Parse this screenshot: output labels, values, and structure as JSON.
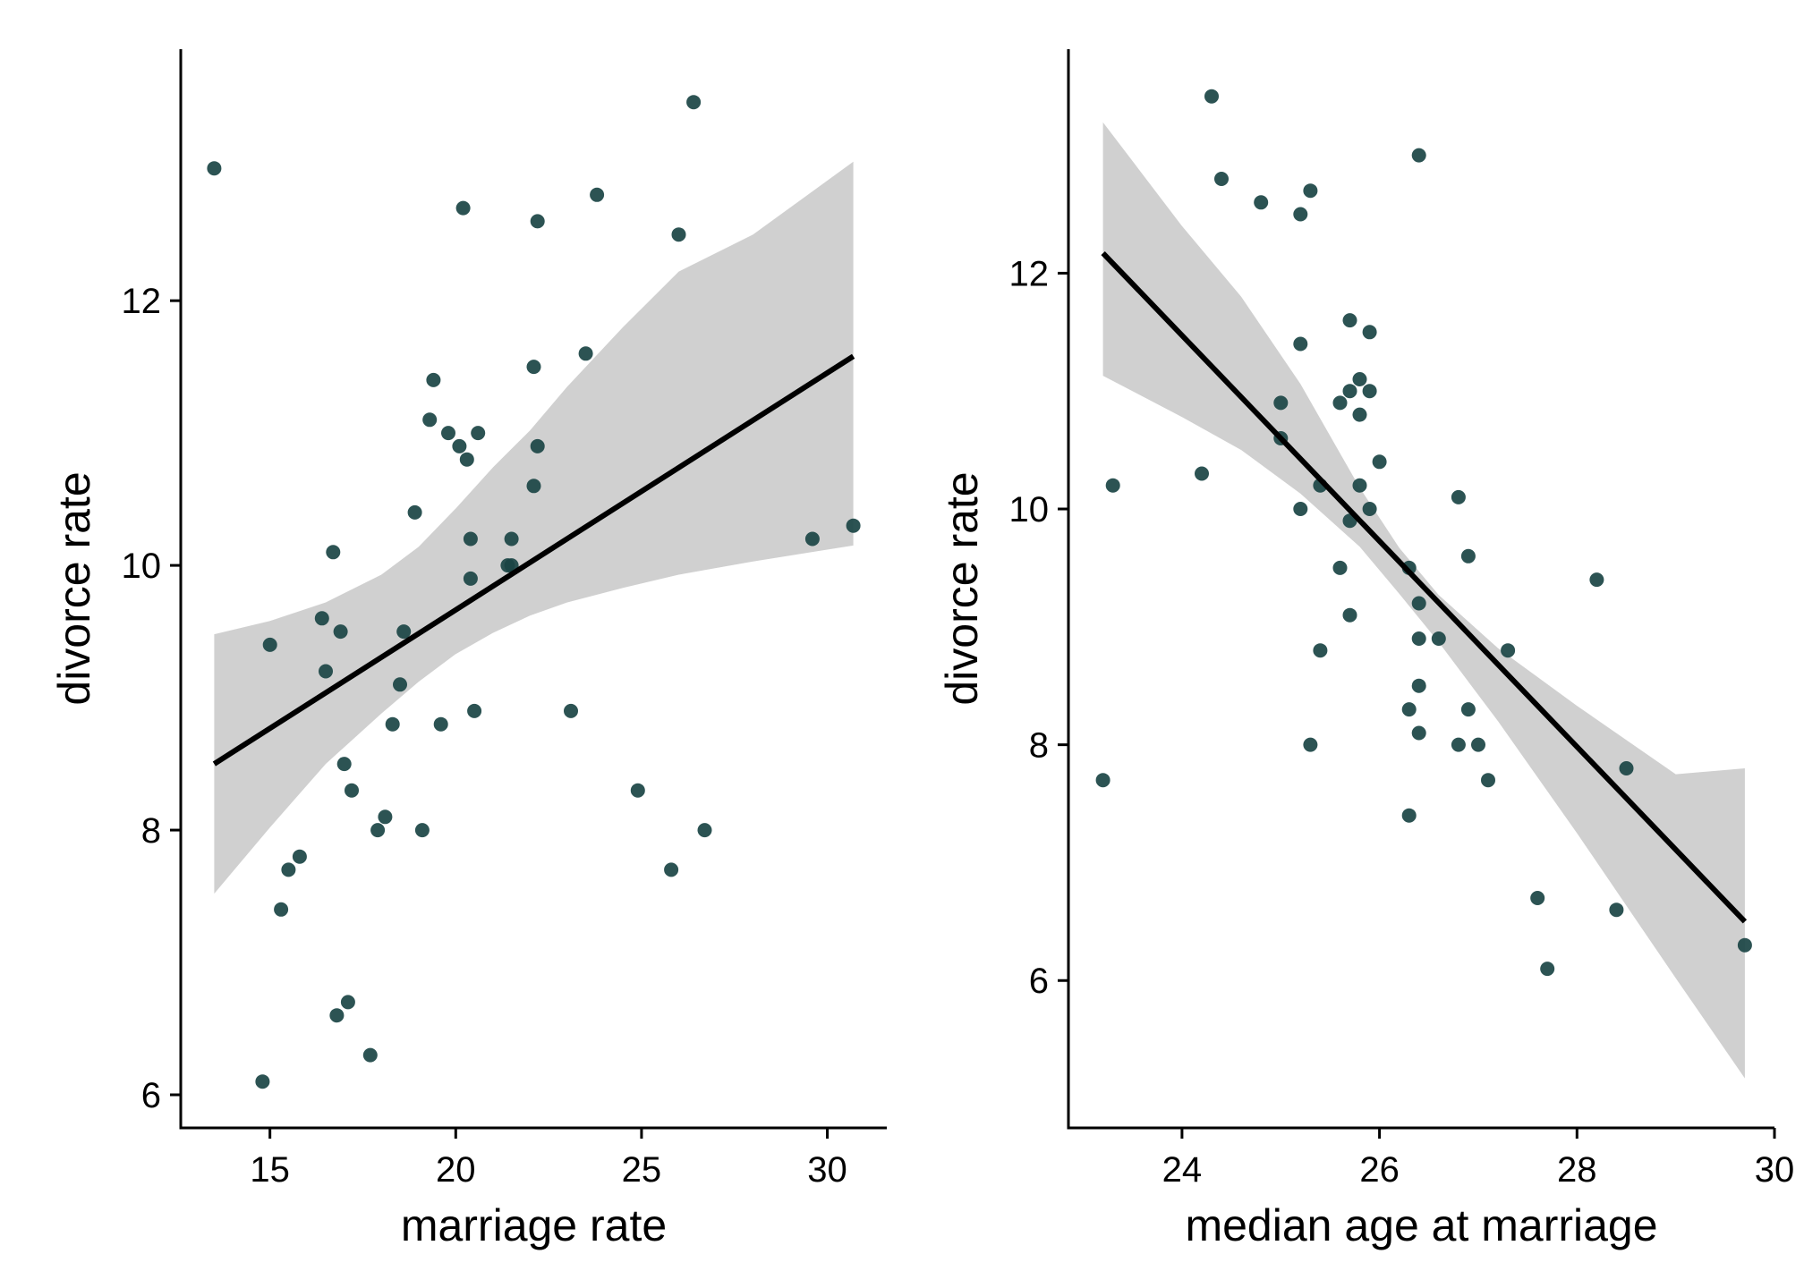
{
  "chart_data": [
    {
      "type": "scatter",
      "title": "",
      "xlabel": "marriage rate",
      "ylabel": "divorce rate",
      "xlim": [
        12.6,
        31.6
      ],
      "ylim": [
        5.75,
        13.9
      ],
      "xticks": [
        15,
        20,
        25,
        30
      ],
      "yticks": [
        6,
        8,
        10,
        12
      ],
      "grid": false,
      "legend": "none",
      "point_color": "#1a4444",
      "ribbon_color": "#d0d0d0",
      "line_color": "#000000",
      "points": [
        [
          13.5,
          13.0
        ],
        [
          14.8,
          6.1
        ],
        [
          15.0,
          9.4
        ],
        [
          15.3,
          7.4
        ],
        [
          15.5,
          7.7
        ],
        [
          15.8,
          7.8
        ],
        [
          16.4,
          9.6
        ],
        [
          16.5,
          9.2
        ],
        [
          16.7,
          10.1
        ],
        [
          16.8,
          6.6
        ],
        [
          16.9,
          9.5
        ],
        [
          17.0,
          8.5
        ],
        [
          17.1,
          6.7
        ],
        [
          17.2,
          8.3
        ],
        [
          17.7,
          6.3
        ],
        [
          17.9,
          8.0
        ],
        [
          18.1,
          8.1
        ],
        [
          18.3,
          8.8
        ],
        [
          18.5,
          9.1
        ],
        [
          18.6,
          9.5
        ],
        [
          18.9,
          10.4
        ],
        [
          19.1,
          8.0
        ],
        [
          19.3,
          11.1
        ],
        [
          19.4,
          11.4
        ],
        [
          19.6,
          8.8
        ],
        [
          19.8,
          11.0
        ],
        [
          20.1,
          10.9
        ],
        [
          20.2,
          12.7
        ],
        [
          20.3,
          10.8
        ],
        [
          20.4,
          9.9
        ],
        [
          20.4,
          10.2
        ],
        [
          20.5,
          8.9
        ],
        [
          20.6,
          11.0
        ],
        [
          21.4,
          10.0
        ],
        [
          21.5,
          10.2
        ],
        [
          21.5,
          10.0
        ],
        [
          22.1,
          10.6
        ],
        [
          22.1,
          11.5
        ],
        [
          22.2,
          10.9
        ],
        [
          22.2,
          12.6
        ],
        [
          23.1,
          8.9
        ],
        [
          23.5,
          11.6
        ],
        [
          23.8,
          12.8
        ],
        [
          24.9,
          8.3
        ],
        [
          25.8,
          7.7
        ],
        [
          26.0,
          12.5
        ],
        [
          26.4,
          13.5
        ],
        [
          26.7,
          8.0
        ],
        [
          29.6,
          10.2
        ],
        [
          30.7,
          10.3
        ]
      ],
      "fit": {
        "x": [
          13.5,
          30.7
        ],
        "y": [
          8.5,
          11.58
        ]
      },
      "ribbon": {
        "x": [
          13.5,
          15.0,
          16.5,
          18.0,
          19.0,
          20.0,
          21.0,
          22.0,
          23.0,
          24.5,
          26.0,
          28.0,
          30.7
        ],
        "lower": [
          7.52,
          8.02,
          8.5,
          8.88,
          9.12,
          9.33,
          9.49,
          9.62,
          9.72,
          9.83,
          9.93,
          10.03,
          10.15
        ],
        "upper": [
          9.48,
          9.58,
          9.72,
          9.93,
          10.14,
          10.43,
          10.74,
          11.02,
          11.35,
          11.8,
          12.22,
          12.5,
          13.05
        ]
      }
    },
    {
      "type": "scatter",
      "title": "",
      "xlabel": "median age at marriage",
      "ylabel": "divorce rate",
      "xlim": [
        22.85,
        30.0
      ],
      "ylim": [
        4.75,
        13.9
      ],
      "xticks": [
        24,
        26,
        28,
        30
      ],
      "yticks": [
        6,
        8,
        10,
        12
      ],
      "grid": false,
      "legend": "none",
      "point_color": "#1a4444",
      "ribbon_color": "#d0d0d0",
      "line_color": "#000000",
      "points": [
        [
          23.2,
          7.7
        ],
        [
          23.3,
          10.2
        ],
        [
          24.2,
          10.3
        ],
        [
          24.3,
          13.5
        ],
        [
          24.4,
          12.8
        ],
        [
          24.8,
          12.6
        ],
        [
          25.0,
          10.9
        ],
        [
          25.0,
          10.6
        ],
        [
          25.2,
          12.5
        ],
        [
          25.2,
          11.4
        ],
        [
          25.2,
          10.0
        ],
        [
          25.3,
          12.7
        ],
        [
          25.3,
          8.0
        ],
        [
          25.4,
          10.2
        ],
        [
          25.4,
          8.8
        ],
        [
          25.6,
          10.9
        ],
        [
          25.6,
          9.5
        ],
        [
          25.7,
          11.6
        ],
        [
          25.7,
          11.0
        ],
        [
          25.7,
          9.9
        ],
        [
          25.7,
          9.1
        ],
        [
          25.8,
          11.1
        ],
        [
          25.8,
          10.8
        ],
        [
          25.8,
          10.2
        ],
        [
          25.9,
          11.5
        ],
        [
          25.9,
          11.0
        ],
        [
          25.9,
          10.0
        ],
        [
          26.0,
          10.4
        ],
        [
          26.3,
          9.5
        ],
        [
          26.3,
          8.3
        ],
        [
          26.3,
          7.4
        ],
        [
          26.4,
          13.0
        ],
        [
          26.4,
          9.2
        ],
        [
          26.4,
          8.9
        ],
        [
          26.4,
          8.5
        ],
        [
          26.4,
          8.1
        ],
        [
          26.6,
          8.9
        ],
        [
          26.8,
          10.1
        ],
        [
          26.8,
          8.0
        ],
        [
          26.9,
          9.6
        ],
        [
          26.9,
          8.3
        ],
        [
          27.0,
          8.0
        ],
        [
          27.1,
          7.7
        ],
        [
          27.3,
          8.8
        ],
        [
          27.6,
          6.7
        ],
        [
          27.7,
          6.1
        ],
        [
          28.2,
          9.4
        ],
        [
          28.4,
          6.6
        ],
        [
          28.5,
          7.8
        ],
        [
          29.7,
          6.3
        ]
      ],
      "fit": {
        "x": [
          23.2,
          29.7
        ],
        "y": [
          12.17,
          6.5
        ]
      },
      "ribbon": {
        "x": [
          23.2,
          24.0,
          24.6,
          25.2,
          25.8,
          26.2,
          26.6,
          27.2,
          28.0,
          29.0,
          29.7
        ],
        "lower": [
          11.13,
          10.78,
          10.5,
          10.13,
          9.68,
          9.28,
          8.87,
          8.2,
          7.25,
          6.02,
          5.17
        ],
        "upper": [
          13.28,
          12.4,
          11.8,
          11.06,
          10.18,
          9.67,
          9.27,
          8.82,
          8.33,
          7.75,
          7.8
        ]
      }
    }
  ]
}
